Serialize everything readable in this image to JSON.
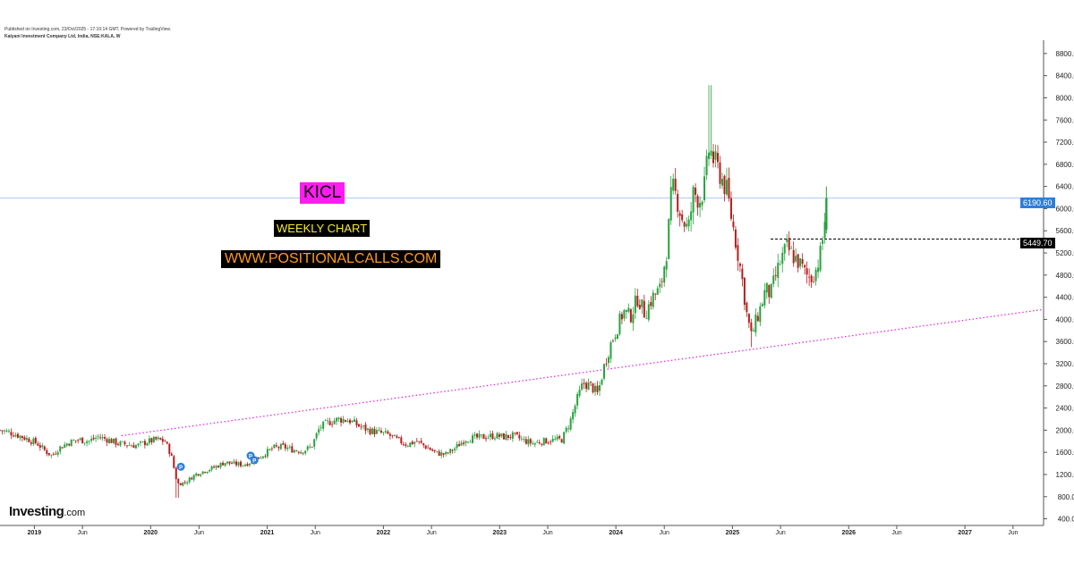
{
  "meta": {
    "published_line": "Published on Investing.com, 23/Oct/2025 - 17:10:14 GMT, Powered by TradingView.",
    "instrument_line": "Kalyani Investment Company Ltd, India, NSE:KALA, W"
  },
  "annotations": {
    "ticker": "KICL",
    "timeframe": "WEEKLY CHART",
    "website": "WWW.POSITIONALCALLS.COM"
  },
  "logo": {
    "main": "Investing",
    "suffix": ".com"
  },
  "colors": {
    "up_candle": "#26a33c",
    "down_candle": "#b71c1c",
    "trendline": "#e020e0",
    "last_price_line": "#aac8ef",
    "last_price_tag": "#2f7fd8",
    "level_tag": "#000000",
    "ticker_bg": "#ff1cf0"
  },
  "chart_data": {
    "type": "candlestick",
    "title": "Kalyani Investment Company Ltd, India, NSE:KALA, W",
    "interval": "weekly",
    "y_axis": {
      "position": "right",
      "range": [
        280,
        9040
      ],
      "ticks": [
        "400.00",
        "800.00",
        "1200.00",
        "1600.00",
        "2000.00",
        "2400.00",
        "2800.00",
        "3200.00",
        "3600.00",
        "4000.00",
        "4400.00",
        "4800.00",
        "5200.00",
        "5600.00",
        "6000.00",
        "6400.00",
        "6800.00",
        "7200.00",
        "7600.00",
        "8000.00",
        "8400.00",
        "8800.00"
      ]
    },
    "x_axis": {
      "range": [
        "2018-09-15",
        "2027-09-05"
      ],
      "ticks": [
        {
          "date": "2019-01-01",
          "label": "2019",
          "year": true
        },
        {
          "date": "2019-06-01",
          "label": "Jun",
          "year": false
        },
        {
          "date": "2020-01-01",
          "label": "2020",
          "year": true
        },
        {
          "date": "2020-06-01",
          "label": "Jun",
          "year": false
        },
        {
          "date": "2021-01-01",
          "label": "2021",
          "year": true
        },
        {
          "date": "2021-06-01",
          "label": "Jun",
          "year": false
        },
        {
          "date": "2022-01-01",
          "label": "2022",
          "year": true
        },
        {
          "date": "2022-06-01",
          "label": "Jun",
          "year": false
        },
        {
          "date": "2023-01-01",
          "label": "2023",
          "year": true
        },
        {
          "date": "2023-06-01",
          "label": "Jun",
          "year": false
        },
        {
          "date": "2024-01-01",
          "label": "2024",
          "year": true
        },
        {
          "date": "2024-06-01",
          "label": "Jun",
          "year": false
        },
        {
          "date": "2025-01-01",
          "label": "2025",
          "year": true
        },
        {
          "date": "2025-06-01",
          "label": "Jun",
          "year": false
        },
        {
          "date": "2026-01-01",
          "label": "2026",
          "year": true
        },
        {
          "date": "2026-06-01",
          "label": "Jun",
          "year": false
        },
        {
          "date": "2027-01-01",
          "label": "2027",
          "year": true
        },
        {
          "date": "2027-06-01",
          "label": "Jun",
          "year": false
        }
      ]
    },
    "price_path": [
      [
        "2018-09-15",
        2000
      ],
      [
        "2018-10-15",
        1960
      ],
      [
        "2018-11-15",
        1900
      ],
      [
        "2018-12-15",
        1830
      ],
      [
        "2019-01-10",
        1760
      ],
      [
        "2019-02-05",
        1620
      ],
      [
        "2019-02-25",
        1540
      ],
      [
        "2019-03-20",
        1680
      ],
      [
        "2019-04-20",
        1780
      ],
      [
        "2019-05-20",
        1830
      ],
      [
        "2019-06-20",
        1800
      ],
      [
        "2019-07-20",
        1880
      ],
      [
        "2019-08-20",
        1830
      ],
      [
        "2019-09-20",
        1760
      ],
      [
        "2019-10-20",
        1740
      ],
      [
        "2019-11-20",
        1720
      ],
      [
        "2019-12-20",
        1790
      ],
      [
        "2020-01-20",
        1830
      ],
      [
        "2020-02-15",
        1800
      ],
      [
        "2020-03-05",
        1560
      ],
      [
        "2020-03-25",
        1030
      ],
      [
        "2020-04-20",
        1060
      ],
      [
        "2020-05-20",
        1200
      ],
      [
        "2020-06-20",
        1270
      ],
      [
        "2020-07-20",
        1330
      ],
      [
        "2020-08-20",
        1420
      ],
      [
        "2020-09-20",
        1390
      ],
      [
        "2020-10-20",
        1380
      ],
      [
        "2020-11-20",
        1450
      ],
      [
        "2020-12-20",
        1560
      ],
      [
        "2021-01-20",
        1680
      ],
      [
        "2021-02-20",
        1700
      ],
      [
        "2021-03-20",
        1650
      ],
      [
        "2021-04-20",
        1620
      ],
      [
        "2021-05-20",
        1700
      ],
      [
        "2021-06-15",
        2050
      ],
      [
        "2021-07-15",
        2150
      ],
      [
        "2021-08-15",
        2200
      ],
      [
        "2021-09-15",
        2180
      ],
      [
        "2021-10-15",
        2080
      ],
      [
        "2021-11-15",
        2000
      ],
      [
        "2021-12-15",
        1960
      ],
      [
        "2022-01-15",
        1920
      ],
      [
        "2022-02-15",
        1820
      ],
      [
        "2022-03-15",
        1740
      ],
      [
        "2022-04-15",
        1800
      ],
      [
        "2022-05-15",
        1700
      ],
      [
        "2022-06-15",
        1590
      ],
      [
        "2022-07-15",
        1560
      ],
      [
        "2022-08-15",
        1680
      ],
      [
        "2022-09-15",
        1840
      ],
      [
        "2022-10-15",
        1860
      ],
      [
        "2022-11-15",
        1880
      ],
      [
        "2022-12-15",
        1900
      ],
      [
        "2023-01-15",
        1880
      ],
      [
        "2023-02-15",
        1900
      ],
      [
        "2023-03-15",
        1820
      ],
      [
        "2023-04-15",
        1760
      ],
      [
        "2023-05-15",
        1800
      ],
      [
        "2023-06-15",
        1820
      ],
      [
        "2023-07-15",
        1830
      ],
      [
        "2023-08-10",
        2150
      ],
      [
        "2023-09-01",
        2550
      ],
      [
        "2023-09-20",
        2850
      ],
      [
        "2023-10-15",
        2800
      ],
      [
        "2023-11-05",
        2650
      ],
      [
        "2023-11-25",
        3150
      ],
      [
        "2023-12-15",
        3550
      ],
      [
        "2024-01-05",
        3850
      ],
      [
        "2024-01-25",
        4150
      ],
      [
        "2024-02-15",
        4050
      ],
      [
        "2024-03-10",
        4400
      ],
      [
        "2024-04-01",
        4100
      ],
      [
        "2024-04-25",
        4400
      ],
      [
        "2024-05-20",
        4550
      ],
      [
        "2024-06-10",
        5300
      ],
      [
        "2024-06-25",
        6400
      ],
      [
        "2024-07-10",
        6200
      ],
      [
        "2024-07-25",
        5850
      ],
      [
        "2024-08-15",
        5600
      ],
      [
        "2024-09-01",
        6300
      ],
      [
        "2024-09-20",
        6150
      ],
      [
        "2024-10-05",
        6400
      ],
      [
        "2024-10-20",
        7100
      ],
      [
        "2024-11-05",
        6850
      ],
      [
        "2024-11-25",
        6600
      ],
      [
        "2024-12-15",
        6300
      ],
      [
        "2024-12-30",
        5800
      ],
      [
        "2025-01-15",
        5300
      ],
      [
        "2025-02-01",
        4700
      ],
      [
        "2025-02-15",
        4100
      ],
      [
        "2025-03-01",
        3700
      ],
      [
        "2025-03-15",
        3950
      ],
      [
        "2025-04-01",
        4250
      ],
      [
        "2025-04-15",
        4550
      ],
      [
        "2025-05-01",
        4450
      ],
      [
        "2025-05-15",
        4750
      ],
      [
        "2025-06-01",
        5050
      ],
      [
        "2025-06-20",
        5300
      ],
      [
        "2025-07-10",
        5150
      ],
      [
        "2025-08-01",
        5000
      ],
      [
        "2025-08-20",
        4800
      ],
      [
        "2025-09-05",
        4750
      ],
      [
        "2025-09-20",
        4900
      ],
      [
        "2025-10-05",
        5200
      ],
      [
        "2025-10-15",
        5600
      ],
      [
        "2025-10-23",
        6190.6
      ]
    ],
    "last_price": 6190.6,
    "last_price_label": "6190.60",
    "horizontal_levels": [
      {
        "value": 5449.7,
        "label": "5449.70",
        "from": "2025-05-01",
        "style": "dashed"
      }
    ],
    "trendlines": [
      {
        "from": [
          "2019-10-01",
          1900
        ],
        "to": [
          "2027-09-05",
          4180
        ],
        "style": "dotted",
        "color": "#e020e0"
      }
    ],
    "markers": [
      {
        "date": "2020-04-05",
        "value": 1340,
        "label": "P"
      },
      {
        "date": "2020-11-10",
        "value": 1540,
        "label": "P"
      },
      {
        "date": "2020-11-22",
        "value": 1460,
        "label": "P"
      }
    ]
  }
}
